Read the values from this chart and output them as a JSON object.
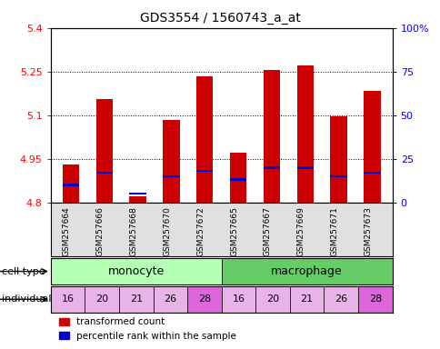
{
  "title": "GDS3554 / 1560743_a_at",
  "samples": [
    "GSM257664",
    "GSM257666",
    "GSM257668",
    "GSM257670",
    "GSM257672",
    "GSM257665",
    "GSM257667",
    "GSM257669",
    "GSM257671",
    "GSM257673"
  ],
  "transformed_counts": [
    4.93,
    5.155,
    4.82,
    5.085,
    5.235,
    4.97,
    5.255,
    5.27,
    5.095,
    5.185
  ],
  "percentile_ranks": [
    10,
    17,
    5,
    15,
    18,
    13,
    20,
    20,
    15,
    17
  ],
  "base_value": 4.8,
  "ylim": [
    4.8,
    5.4
  ],
  "yticks": [
    4.8,
    4.95,
    5.1,
    5.25,
    5.4
  ],
  "right_yticks": [
    0,
    25,
    50,
    75,
    100
  ],
  "cell_types": [
    "monocyte",
    "monocyte",
    "monocyte",
    "monocyte",
    "monocyte",
    "macrophage",
    "macrophage",
    "macrophage",
    "macrophage",
    "macrophage"
  ],
  "individuals": [
    "16",
    "20",
    "21",
    "26",
    "28",
    "16",
    "20",
    "21",
    "26",
    "28"
  ],
  "cell_type_colors": {
    "monocyte": "#b3ffb3",
    "macrophage": "#66cc66"
  },
  "individual_colors_light": "#e8b4e8",
  "individual_colors_dark": "#dd66dd",
  "individual_dark_value": "28",
  "bar_color_red": "#cc0000",
  "bar_color_blue": "#0000cc",
  "bar_width": 0.5,
  "bg_color": "#e0e0e0",
  "legend_red": "transformed count",
  "legend_blue": "percentile rank within the sample"
}
